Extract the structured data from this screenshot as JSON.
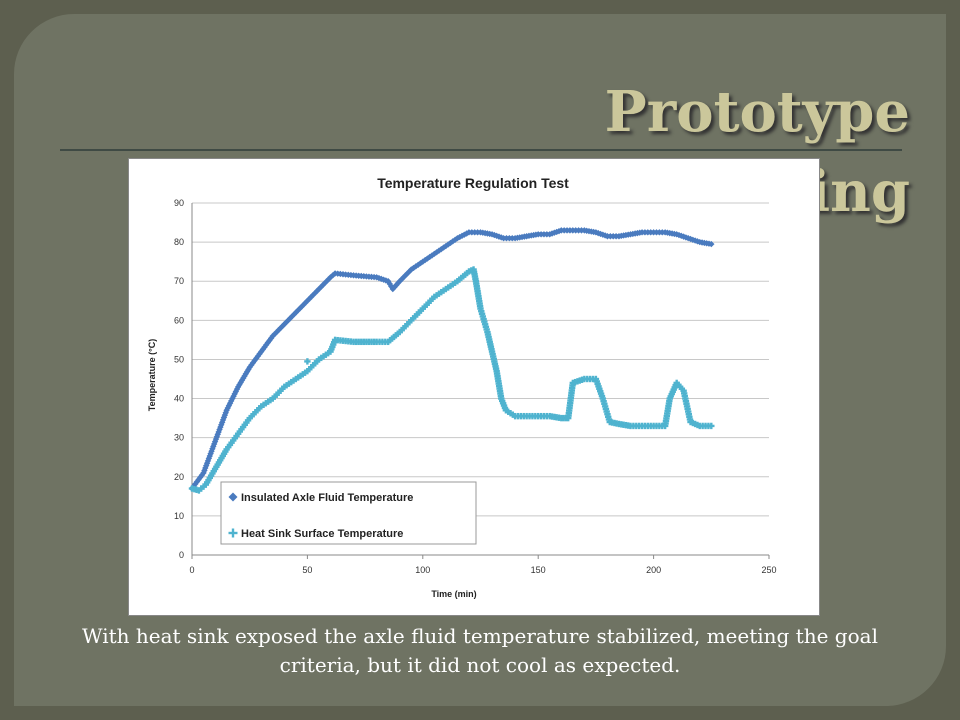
{
  "slide": {
    "title": "Prototype Testing",
    "caption": "With heat sink exposed the axle fluid temperature stabilized, meeting the goal criteria, but it did not cool as expected.",
    "background_color": "#5d5f4f",
    "panel_color": "#6f7363",
    "title_color": "#cbc79b"
  },
  "chart_data": {
    "type": "scatter",
    "title": "Temperature Regulation Test",
    "xlabel": "Time (min)",
    "ylabel": "Temperature (°C)",
    "xlim": [
      0,
      250
    ],
    "ylim": [
      0,
      90
    ],
    "xticks": [
      0,
      50,
      100,
      150,
      200,
      250
    ],
    "yticks": [
      0,
      10,
      20,
      30,
      40,
      50,
      60,
      70,
      80,
      90
    ],
    "grid": "horizontal",
    "legend_position": "lower-left inside",
    "series": [
      {
        "name": "Insulated Axle Fluid Temperature",
        "color": "#4a7bbf",
        "points": [
          [
            0,
            17
          ],
          [
            5,
            21
          ],
          [
            10,
            29
          ],
          [
            15,
            37
          ],
          [
            20,
            43
          ],
          [
            25,
            48
          ],
          [
            30,
            52
          ],
          [
            35,
            56
          ],
          [
            40,
            59
          ],
          [
            45,
            62
          ],
          [
            50,
            65
          ],
          [
            55,
            68
          ],
          [
            60,
            71
          ],
          [
            62,
            72
          ],
          [
            70,
            71.5
          ],
          [
            80,
            71
          ],
          [
            85,
            70
          ],
          [
            87,
            68
          ],
          [
            90,
            70
          ],
          [
            95,
            73
          ],
          [
            100,
            75
          ],
          [
            105,
            77
          ],
          [
            110,
            79
          ],
          [
            115,
            81
          ],
          [
            120,
            82.5
          ],
          [
            125,
            82.5
          ],
          [
            130,
            82
          ],
          [
            135,
            81
          ],
          [
            140,
            81
          ],
          [
            145,
            81.5
          ],
          [
            150,
            82
          ],
          [
            155,
            82
          ],
          [
            160,
            83
          ],
          [
            165,
            83
          ],
          [
            170,
            83
          ],
          [
            175,
            82.5
          ],
          [
            180,
            81.5
          ],
          [
            185,
            81.5
          ],
          [
            190,
            82
          ],
          [
            195,
            82.5
          ],
          [
            200,
            82.5
          ],
          [
            205,
            82.5
          ],
          [
            210,
            82
          ],
          [
            215,
            81
          ],
          [
            220,
            80
          ],
          [
            225,
            79.5
          ]
        ]
      },
      {
        "name": "Heat Sink Surface Temperature",
        "color": "#4fb3cf",
        "points": [
          [
            0,
            17
          ],
          [
            3,
            16.5
          ],
          [
            6,
            18
          ],
          [
            10,
            22
          ],
          [
            15,
            27
          ],
          [
            20,
            31
          ],
          [
            25,
            35
          ],
          [
            30,
            38
          ],
          [
            35,
            40
          ],
          [
            40,
            43
          ],
          [
            45,
            45
          ],
          [
            50,
            47
          ],
          [
            55,
            50
          ],
          [
            60,
            52
          ],
          [
            62,
            55
          ],
          [
            70,
            54.5
          ],
          [
            80,
            54.5
          ],
          [
            85,
            54.5
          ],
          [
            90,
            57
          ],
          [
            95,
            60
          ],
          [
            100,
            63
          ],
          [
            105,
            66
          ],
          [
            110,
            68
          ],
          [
            115,
            70
          ],
          [
            120,
            72.5
          ],
          [
            122,
            73
          ],
          [
            123,
            70
          ],
          [
            125,
            63
          ],
          [
            128,
            57
          ],
          [
            130,
            52
          ],
          [
            132,
            47
          ],
          [
            134,
            40
          ],
          [
            136,
            37
          ],
          [
            140,
            35.5
          ],
          [
            145,
            35.5
          ],
          [
            150,
            35.5
          ],
          [
            155,
            35.5
          ],
          [
            160,
            35
          ],
          [
            163,
            35
          ],
          [
            165,
            44
          ],
          [
            170,
            45
          ],
          [
            175,
            45
          ],
          [
            178,
            40
          ],
          [
            181,
            34
          ],
          [
            185,
            33.5
          ],
          [
            190,
            33
          ],
          [
            195,
            33
          ],
          [
            200,
            33
          ],
          [
            205,
            33
          ],
          [
            207,
            40
          ],
          [
            210,
            44
          ],
          [
            213,
            42
          ],
          [
            216,
            34
          ],
          [
            220,
            33
          ],
          [
            225,
            33
          ]
        ]
      }
    ],
    "outliers": [
      [
        50,
        49.5
      ]
    ]
  }
}
